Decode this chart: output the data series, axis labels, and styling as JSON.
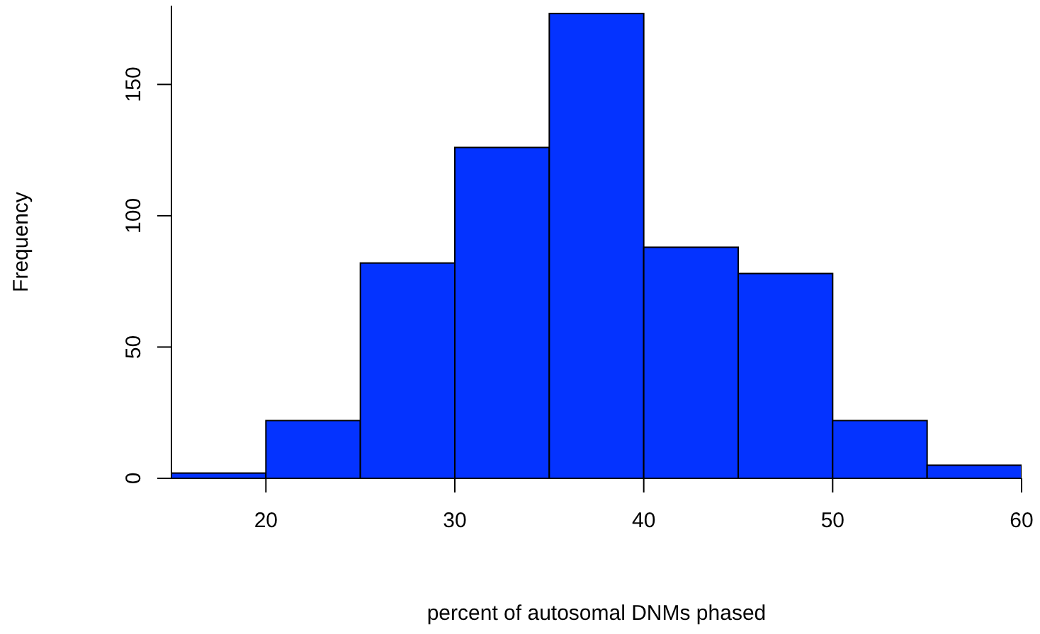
{
  "chart_data": {
    "type": "histogram",
    "xlabel": "percent of autosomal DNMs phased",
    "ylabel": "Frequency",
    "bins": [
      15,
      20,
      25,
      30,
      35,
      40,
      45,
      50,
      55,
      60
    ],
    "values": [
      2,
      22,
      82,
      126,
      177,
      88,
      78,
      22,
      5
    ],
    "color": "#0433ff",
    "xlim": [
      15,
      60
    ],
    "xticks": [
      20,
      30,
      40,
      50,
      60
    ],
    "ylim": [
      0,
      180
    ],
    "yticks": [
      0,
      50,
      100,
      150
    ],
    "grid": false
  }
}
